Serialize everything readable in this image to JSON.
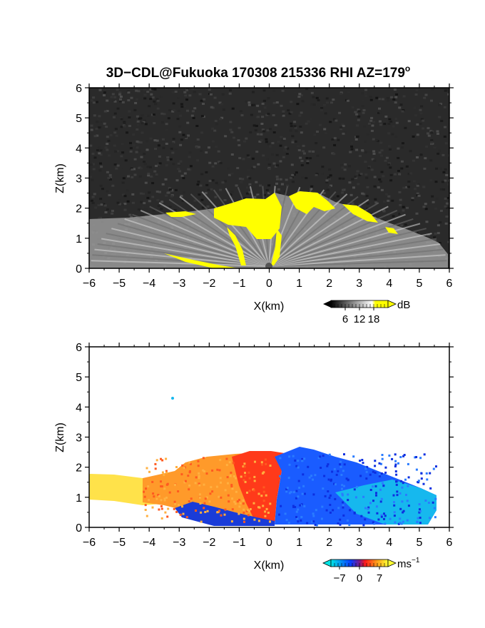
{
  "chart_data": [
    {
      "type": "heatmap",
      "title": "3D−CDL@Fukuoka 170308 215336 RHI AZ=179",
      "title_superscript": "o",
      "xlabel": "X(km)",
      "ylabel": "Z(km)",
      "xlim": [
        -6,
        6
      ],
      "ylim": [
        0,
        6
      ],
      "x_ticks": [
        "−6",
        "−5",
        "−4",
        "−3",
        "−2",
        "−1",
        "0",
        "1",
        "2",
        "3",
        "4",
        "5",
        "6"
      ],
      "y_ticks": [
        "0",
        "1",
        "2",
        "3",
        "4",
        "5",
        "6"
      ],
      "background_color": "#2a2a2a",
      "colorbar": {
        "label": "dB",
        "ticks": [
          "6",
          "12",
          "18"
        ],
        "range": [
          0,
          24
        ],
        "colors": [
          "#000000",
          "#ffffff",
          "#ffff00"
        ]
      },
      "features": {
        "echo_top_km": 2.6,
        "cloud_base_high_signal": "yellow"
      }
    },
    {
      "type": "heatmap",
      "xlabel": "X(km)",
      "ylabel": "Z(km)",
      "xlim": [
        -6,
        6
      ],
      "ylim": [
        0,
        6
      ],
      "x_ticks": [
        "−6",
        "−5",
        "−4",
        "−3",
        "−2",
        "−1",
        "0",
        "1",
        "2",
        "3",
        "4",
        "5",
        "6"
      ],
      "y_ticks": [
        "0",
        "1",
        "2",
        "3",
        "4",
        "5",
        "6"
      ],
      "background_color": "#ffffff",
      "colorbar": {
        "label": "ms",
        "label_superscript": "−1",
        "ticks": [
          "−7",
          "0",
          "7"
        ],
        "range": [
          -10,
          10
        ],
        "colors": [
          "#00e5e5",
          "#0a3cff",
          "#ff1a1a",
          "#ff9a1a",
          "#ffff33"
        ]
      },
      "features": {
        "negative_side": "x > 0 (blue/cyan)",
        "positive_side": "x < 0 (red/orange/yellow)"
      }
    }
  ]
}
